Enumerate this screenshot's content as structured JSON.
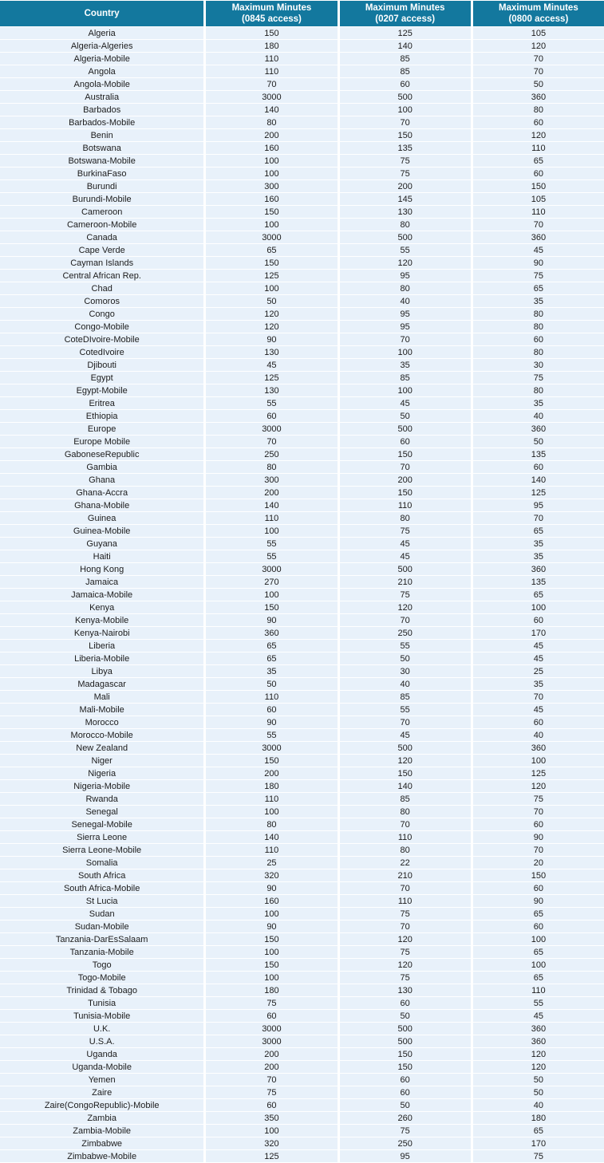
{
  "accent_colors": {
    "header_background": "#13789e",
    "header_text": "#ffffff",
    "row_background": "#e8f1fa",
    "row_separator": "#ffffff",
    "body_text": "#1c1c1c"
  },
  "table": {
    "columns": [
      {
        "title": "Country",
        "subtitle": ""
      },
      {
        "title": "Maximum Minutes",
        "subtitle": "(0845 access)"
      },
      {
        "title": "Maximum Minutes",
        "subtitle": "(0207 access)"
      },
      {
        "title": "Maximum Minutes",
        "subtitle": "(0800 access)"
      }
    ],
    "rows": [
      [
        "Algeria",
        "150",
        "125",
        "105"
      ],
      [
        "Algeria-Algeries",
        "180",
        "140",
        "120"
      ],
      [
        "Algeria-Mobile",
        "110",
        "85",
        "70"
      ],
      [
        "Angola",
        "110",
        "85",
        "70"
      ],
      [
        "Angola-Mobile",
        "70",
        "60",
        "50"
      ],
      [
        "Australia",
        "3000",
        "500",
        "360"
      ],
      [
        "Barbados",
        "140",
        "100",
        "80"
      ],
      [
        "Barbados-Mobile",
        "80",
        "70",
        "60"
      ],
      [
        "Benin",
        "200",
        "150",
        "120"
      ],
      [
        "Botswana",
        "160",
        "135",
        "110"
      ],
      [
        "Botswana-Mobile",
        "100",
        "75",
        "65"
      ],
      [
        "BurkinaFaso",
        "100",
        "75",
        "60"
      ],
      [
        "Burundi",
        "300",
        "200",
        "150"
      ],
      [
        "Burundi-Mobile",
        "160",
        "145",
        "105"
      ],
      [
        "Cameroon",
        "150",
        "130",
        "110"
      ],
      [
        "Cameroon-Mobile",
        "100",
        "80",
        "70"
      ],
      [
        "Canada",
        "3000",
        "500",
        "360"
      ],
      [
        "Cape Verde",
        "65",
        "55",
        "45"
      ],
      [
        "Cayman Islands",
        "150",
        "120",
        "90"
      ],
      [
        "Central African Rep.",
        "125",
        "95",
        "75"
      ],
      [
        "Chad",
        "100",
        "80",
        "65"
      ],
      [
        "Comoros",
        "50",
        "40",
        "35"
      ],
      [
        "Congo",
        "120",
        "95",
        "80"
      ],
      [
        "Congo-Mobile",
        "120",
        "95",
        "80"
      ],
      [
        "CoteDIvoire-Mobile",
        "90",
        "70",
        "60"
      ],
      [
        "CotedIvoire",
        "130",
        "100",
        "80"
      ],
      [
        "Djibouti",
        "45",
        "35",
        "30"
      ],
      [
        "Egypt",
        "125",
        "85",
        "75"
      ],
      [
        "Egypt-Mobile",
        "130",
        "100",
        "80"
      ],
      [
        "Eritrea",
        "55",
        "45",
        "35"
      ],
      [
        "Ethiopia",
        "60",
        "50",
        "40"
      ],
      [
        "Europe",
        "3000",
        "500",
        "360"
      ],
      [
        "Europe Mobile",
        "70",
        "60",
        "50"
      ],
      [
        "GaboneseRepublic",
        "250",
        "150",
        "135"
      ],
      [
        "Gambia",
        "80",
        "70",
        "60"
      ],
      [
        "Ghana",
        "300",
        "200",
        "140"
      ],
      [
        "Ghana-Accra",
        "200",
        "150",
        "125"
      ],
      [
        "Ghana-Mobile",
        "140",
        "110",
        "95"
      ],
      [
        "Guinea",
        "110",
        "80",
        "70"
      ],
      [
        "Guinea-Mobile",
        "100",
        "75",
        "65"
      ],
      [
        "Guyana",
        "55",
        "45",
        "35"
      ],
      [
        "Haiti",
        "55",
        "45",
        "35"
      ],
      [
        "Hong Kong",
        "3000",
        "500",
        "360"
      ],
      [
        "Jamaica",
        "270",
        "210",
        "135"
      ],
      [
        "Jamaica-Mobile",
        "100",
        "75",
        "65"
      ],
      [
        "Kenya",
        "150",
        "120",
        "100"
      ],
      [
        "Kenya-Mobile",
        "90",
        "70",
        "60"
      ],
      [
        "Kenya-Nairobi",
        "360",
        "250",
        "170"
      ],
      [
        "Liberia",
        "65",
        "55",
        "45"
      ],
      [
        "Liberia-Mobile",
        "65",
        "50",
        "45"
      ],
      [
        "Libya",
        "35",
        "30",
        "25"
      ],
      [
        "Madagascar",
        "50",
        "40",
        "35"
      ],
      [
        "Mali",
        "110",
        "85",
        "70"
      ],
      [
        "Mali-Mobile",
        "60",
        "55",
        "45"
      ],
      [
        "Morocco",
        "90",
        "70",
        "60"
      ],
      [
        "Morocco-Mobile",
        "55",
        "45",
        "40"
      ],
      [
        "New Zealand",
        "3000",
        "500",
        "360"
      ],
      [
        "Niger",
        "150",
        "120",
        "100"
      ],
      [
        "Nigeria",
        "200",
        "150",
        "125"
      ],
      [
        "Nigeria-Mobile",
        "180",
        "140",
        "120"
      ],
      [
        "Rwanda",
        "110",
        "85",
        "75"
      ],
      [
        "Senegal",
        "100",
        "80",
        "70"
      ],
      [
        "Senegal-Mobile",
        "80",
        "70",
        "60"
      ],
      [
        "Sierra Leone",
        "140",
        "110",
        "90"
      ],
      [
        "Sierra Leone-Mobile",
        "110",
        "80",
        "70"
      ],
      [
        "Somalia",
        "25",
        "22",
        "20"
      ],
      [
        "South Africa",
        "320",
        "210",
        "150"
      ],
      [
        "South Africa-Mobile",
        "90",
        "70",
        "60"
      ],
      [
        "St Lucia",
        "160",
        "110",
        "90"
      ],
      [
        "Sudan",
        "100",
        "75",
        "65"
      ],
      [
        "Sudan-Mobile",
        "90",
        "70",
        "60"
      ],
      [
        "Tanzania-DarEsSalaam",
        "150",
        "120",
        "100"
      ],
      [
        "Tanzania-Mobile",
        "100",
        "75",
        "65"
      ],
      [
        "Togo",
        "150",
        "120",
        "100"
      ],
      [
        "Togo-Mobile",
        "100",
        "75",
        "65"
      ],
      [
        "Trinidad & Tobago",
        "180",
        "130",
        "110"
      ],
      [
        "Tunisia",
        "75",
        "60",
        "55"
      ],
      [
        "Tunisia-Mobile",
        "60",
        "50",
        "45"
      ],
      [
        "U.K.",
        "3000",
        "500",
        "360"
      ],
      [
        "U.S.A.",
        "3000",
        "500",
        "360"
      ],
      [
        "Uganda",
        "200",
        "150",
        "120"
      ],
      [
        "Uganda-Mobile",
        "200",
        "150",
        "120"
      ],
      [
        "Yemen",
        "70",
        "60",
        "50"
      ],
      [
        "Zaire",
        "75",
        "60",
        "50"
      ],
      [
        "Zaire(CongoRepublic)-Mobile",
        "60",
        "50",
        "40"
      ],
      [
        "Zambia",
        "350",
        "260",
        "180"
      ],
      [
        "Zambia-Mobile",
        "100",
        "75",
        "65"
      ],
      [
        "Zimbabwe",
        "320",
        "250",
        "170"
      ],
      [
        "Zimbabwe-Mobile",
        "125",
        "95",
        "75"
      ]
    ]
  }
}
